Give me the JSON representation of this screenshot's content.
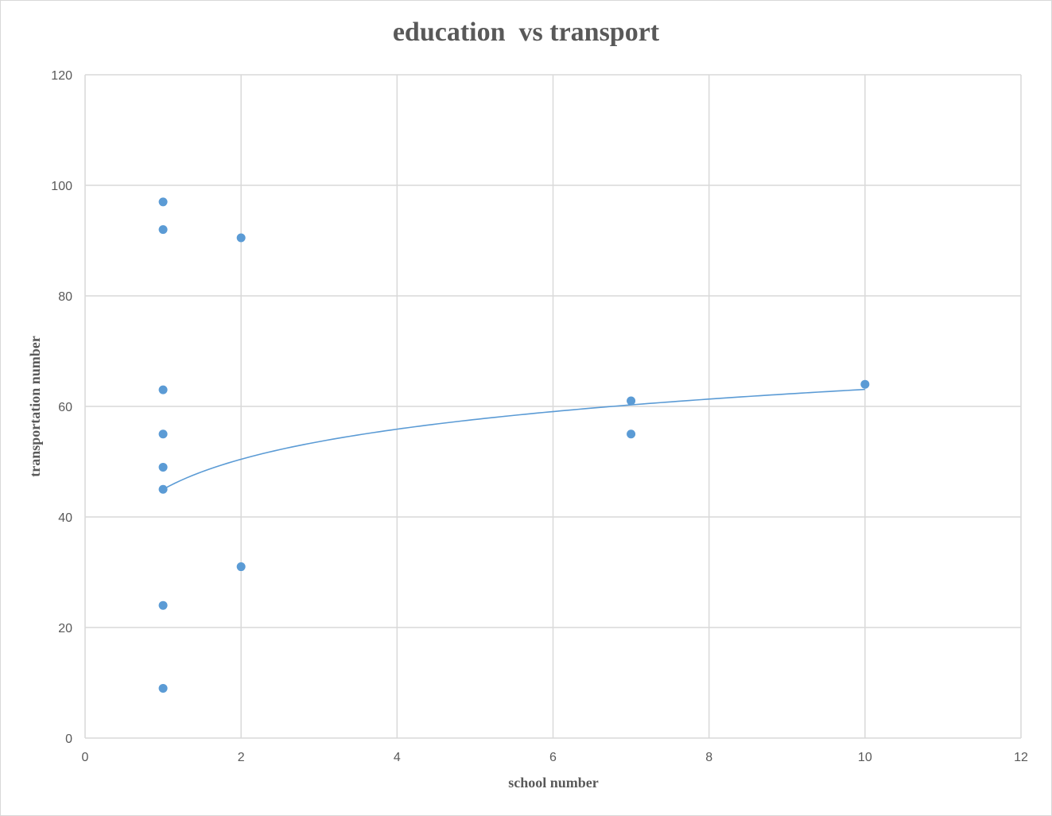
{
  "chart_data": {
    "type": "scatter",
    "title": "education  vs transport",
    "xlabel": "school number",
    "ylabel": "transportation number",
    "xlim": [
      0,
      12
    ],
    "ylim": [
      0,
      120
    ],
    "x_ticks": [
      0,
      2,
      4,
      6,
      8,
      10,
      12
    ],
    "y_ticks": [
      0,
      20,
      40,
      60,
      80,
      100,
      120
    ],
    "grid": true,
    "legend": "none",
    "marker_color": "#5b9bd5",
    "grid_color": "#d9d9d9",
    "series": [
      {
        "points": [
          {
            "x": 1,
            "y": 97
          },
          {
            "x": 1,
            "y": 92
          },
          {
            "x": 1,
            "y": 63
          },
          {
            "x": 1,
            "y": 55
          },
          {
            "x": 1,
            "y": 49
          },
          {
            "x": 1,
            "y": 45
          },
          {
            "x": 1,
            "y": 24
          },
          {
            "x": 1,
            "y": 9
          },
          {
            "x": 2,
            "y": 90.5
          },
          {
            "x": 2,
            "y": 31
          },
          {
            "x": 7,
            "y": 61
          },
          {
            "x": 7,
            "y": 55
          },
          {
            "x": 10,
            "y": 64
          }
        ]
      }
    ],
    "trendline": {
      "type": "logarithmic",
      "intercept": 45,
      "slope": 7.85,
      "x_range": [
        1,
        10
      ]
    }
  }
}
